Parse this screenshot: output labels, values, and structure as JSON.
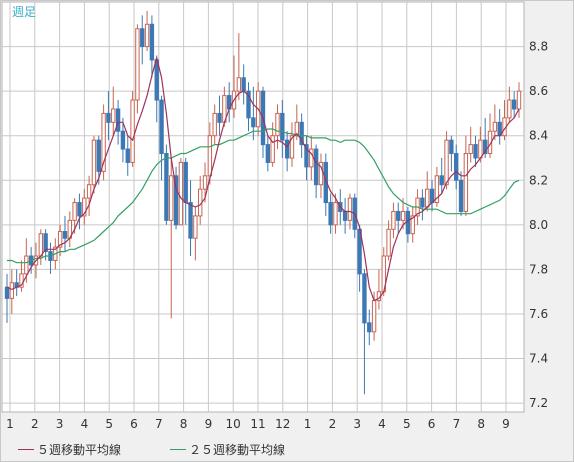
{
  "chart_data": {
    "type": "candlestick",
    "period_label": "週足",
    "x_tick_labels": [
      "1",
      "2",
      "3",
      "4",
      "5",
      "6",
      "7",
      "8",
      "9",
      "10",
      "11",
      "12",
      "1",
      "2",
      "3",
      "4",
      "5",
      "6",
      "7",
      "8",
      "9"
    ],
    "y_ticks": [
      7.2,
      7.4,
      7.6,
      7.8,
      8.0,
      8.2,
      8.4,
      8.6,
      8.8
    ],
    "ylim": [
      7.16,
      9.0
    ],
    "colors": {
      "up": "#c86450",
      "down": "#3c78b4",
      "ma5": "#a0325a",
      "ma25": "#32a064",
      "grid": "#c8c8c8",
      "plot_bg": "#ffffff",
      "frame_bg": "#f0f0f0"
    },
    "series": [
      {
        "name": "５週移動平均線",
        "color": "#a0325a"
      },
      {
        "name": "２５週移動平均線",
        "color": "#32a064"
      }
    ],
    "candles": [
      [
        7.72,
        7.67,
        7.78,
        7.56
      ],
      [
        7.67,
        7.74,
        7.8,
        7.6
      ],
      [
        7.74,
        7.72,
        7.8,
        7.68
      ],
      [
        7.72,
        7.78,
        7.84,
        7.7
      ],
      [
        7.78,
        7.86,
        7.94,
        7.74
      ],
      [
        7.86,
        7.82,
        7.9,
        7.78
      ],
      [
        7.82,
        7.86,
        7.92,
        7.76
      ],
      [
        7.86,
        7.96,
        7.98,
        7.82
      ],
      [
        7.96,
        7.88,
        7.98,
        7.84
      ],
      [
        7.88,
        7.84,
        7.92,
        7.78
      ],
      [
        7.84,
        7.9,
        7.94,
        7.8
      ],
      [
        7.9,
        7.97,
        8.0,
        7.86
      ],
      [
        7.97,
        7.94,
        8.04,
        7.88
      ],
      [
        7.94,
        8.02,
        8.06,
        7.9
      ],
      [
        8.02,
        8.1,
        8.12,
        7.96
      ],
      [
        8.1,
        8.04,
        8.14,
        7.98
      ],
      [
        8.04,
        8.12,
        8.16,
        8.0
      ],
      [
        8.12,
        8.18,
        8.22,
        8.04
      ],
      [
        8.18,
        8.38,
        8.4,
        8.14
      ],
      [
        8.38,
        8.24,
        8.4,
        8.18
      ],
      [
        8.24,
        8.5,
        8.54,
        8.2
      ],
      [
        8.5,
        8.46,
        8.6,
        8.38
      ],
      [
        8.46,
        8.52,
        8.62,
        8.4
      ],
      [
        8.52,
        8.42,
        8.56,
        8.36
      ],
      [
        8.42,
        8.34,
        8.48,
        8.28
      ],
      [
        8.34,
        8.28,
        8.4,
        8.22
      ],
      [
        8.28,
        8.56,
        8.6,
        8.26
      ],
      [
        8.56,
        8.88,
        8.9,
        8.5
      ],
      [
        8.88,
        8.8,
        8.94,
        8.72
      ],
      [
        8.8,
        8.9,
        8.96,
        8.78
      ],
      [
        8.9,
        8.74,
        8.94,
        8.66
      ],
      [
        8.74,
        8.56,
        8.76,
        8.46
      ],
      [
        8.56,
        8.32,
        8.58,
        8.2
      ],
      [
        8.32,
        8.02,
        8.36,
        8.0
      ],
      [
        8.02,
        8.22,
        8.3,
        7.58
      ],
      [
        8.22,
        8.0,
        8.26,
        7.98
      ],
      [
        8.0,
        8.28,
        8.3,
        8.0
      ],
      [
        8.28,
        8.1,
        8.3,
        8.0
      ],
      [
        8.1,
        7.94,
        8.2,
        7.86
      ],
      [
        7.94,
        8.04,
        8.08,
        7.84
      ],
      [
        8.04,
        8.16,
        8.22,
        8.0
      ],
      [
        8.16,
        8.22,
        8.28,
        8.1
      ],
      [
        8.22,
        8.4,
        8.46,
        8.18
      ],
      [
        8.4,
        8.5,
        8.54,
        8.36
      ],
      [
        8.5,
        8.46,
        8.58,
        8.4
      ],
      [
        8.46,
        8.58,
        8.62,
        8.44
      ],
      [
        8.58,
        8.52,
        8.64,
        8.46
      ],
      [
        8.52,
        8.6,
        8.76,
        8.48
      ],
      [
        8.6,
        8.66,
        8.86,
        8.56
      ],
      [
        8.66,
        8.6,
        8.72,
        8.54
      ],
      [
        8.6,
        8.48,
        8.64,
        8.42
      ],
      [
        8.48,
        8.44,
        8.62,
        8.38
      ],
      [
        8.44,
        8.6,
        8.64,
        8.4
      ],
      [
        8.6,
        8.36,
        8.62,
        8.3
      ],
      [
        8.36,
        8.28,
        8.4,
        8.24
      ],
      [
        8.28,
        8.4,
        8.46,
        8.26
      ],
      [
        8.4,
        8.5,
        8.54,
        8.34
      ],
      [
        8.5,
        8.38,
        8.56,
        8.3
      ],
      [
        8.38,
        8.3,
        8.42,
        8.24
      ],
      [
        8.3,
        8.4,
        8.46,
        8.26
      ],
      [
        8.4,
        8.46,
        8.54,
        8.38
      ],
      [
        8.46,
        8.36,
        8.5,
        8.3
      ],
      [
        8.36,
        8.26,
        8.4,
        8.2
      ],
      [
        8.26,
        8.34,
        8.4,
        8.2
      ],
      [
        8.34,
        8.18,
        8.36,
        8.12
      ],
      [
        8.18,
        8.28,
        8.32,
        8.12
      ],
      [
        8.28,
        8.1,
        8.32,
        8.04
      ],
      [
        8.1,
        8.0,
        8.14,
        7.96
      ],
      [
        8.0,
        8.1,
        8.14,
        7.96
      ],
      [
        8.1,
        8.06,
        8.16,
        8.0
      ],
      [
        8.06,
        8.02,
        8.12,
        7.96
      ],
      [
        8.02,
        8.12,
        8.14,
        7.98
      ],
      [
        8.12,
        7.98,
        8.14,
        7.94
      ],
      [
        7.98,
        7.78,
        8.0,
        7.7
      ],
      [
        7.78,
        7.56,
        7.8,
        7.24
      ],
      [
        7.56,
        7.52,
        7.62,
        7.46
      ],
      [
        7.52,
        7.66,
        7.7,
        7.48
      ],
      [
        7.66,
        7.7,
        7.8,
        7.62
      ],
      [
        7.7,
        7.86,
        7.9,
        7.68
      ],
      [
        7.86,
        7.98,
        8.02,
        7.84
      ],
      [
        7.98,
        8.06,
        8.1,
        7.94
      ],
      [
        8.06,
        8.02,
        8.1,
        7.96
      ],
      [
        8.02,
        8.06,
        8.12,
        7.98
      ],
      [
        8.06,
        7.96,
        8.08,
        7.92
      ],
      [
        7.96,
        8.04,
        8.08,
        7.92
      ],
      [
        8.04,
        8.12,
        8.16,
        8.0
      ],
      [
        8.12,
        8.08,
        8.16,
        8.02
      ],
      [
        8.08,
        8.16,
        8.24,
        8.06
      ],
      [
        8.16,
        8.1,
        8.2,
        8.06
      ],
      [
        8.1,
        8.22,
        8.26,
        8.08
      ],
      [
        8.22,
        8.18,
        8.3,
        8.14
      ],
      [
        8.18,
        8.38,
        8.42,
        8.16
      ],
      [
        8.38,
        8.32,
        8.4,
        8.24
      ],
      [
        8.32,
        8.2,
        8.36,
        8.16
      ],
      [
        8.2,
        8.06,
        8.24,
        8.04
      ],
      [
        8.06,
        8.32,
        8.4,
        8.04
      ],
      [
        8.32,
        8.36,
        8.44,
        8.28
      ],
      [
        8.36,
        8.3,
        8.4,
        8.26
      ],
      [
        8.3,
        8.38,
        8.44,
        8.28
      ],
      [
        8.38,
        8.32,
        8.48,
        8.3
      ],
      [
        8.32,
        8.42,
        8.5,
        8.3
      ],
      [
        8.42,
        8.46,
        8.54,
        8.38
      ],
      [
        8.46,
        8.4,
        8.52,
        8.36
      ],
      [
        8.4,
        8.48,
        8.56,
        8.38
      ],
      [
        8.48,
        8.56,
        8.62,
        8.46
      ],
      [
        8.56,
        8.52,
        8.6,
        8.48
      ],
      [
        8.52,
        8.6,
        8.64,
        8.48
      ]
    ],
    "ma5": [
      7.72,
      7.71,
      7.72,
      7.73,
      7.77,
      7.81,
      7.84,
      7.86,
      7.89,
      7.89,
      7.89,
      7.91,
      7.92,
      7.94,
      7.98,
      8.03,
      8.05,
      8.09,
      8.16,
      8.21,
      8.28,
      8.34,
      8.4,
      8.46,
      8.46,
      8.4,
      8.38,
      8.45,
      8.51,
      8.58,
      8.67,
      8.75,
      8.66,
      8.5,
      8.3,
      8.16,
      8.12,
      8.1,
      8.09,
      8.08,
      8.09,
      8.12,
      8.21,
      8.29,
      8.38,
      8.46,
      8.52,
      8.56,
      8.59,
      8.6,
      8.58,
      8.54,
      8.52,
      8.48,
      8.4,
      8.37,
      8.38,
      8.37,
      8.35,
      8.39,
      8.41,
      8.38,
      8.34,
      8.32,
      8.28,
      8.26,
      8.2,
      8.15,
      8.12,
      8.08,
      8.06,
      8.06,
      8.05,
      7.99,
      7.87,
      7.72,
      7.66,
      7.67,
      7.7,
      7.8,
      7.9,
      7.96,
      8.0,
      8.02,
      8.03,
      8.05,
      8.06,
      8.08,
      8.1,
      8.12,
      8.14,
      8.19,
      8.22,
      8.24,
      8.22,
      8.22,
      8.25,
      8.27,
      8.3,
      8.33,
      8.36,
      8.4,
      8.4,
      8.43,
      8.46,
      8.48,
      8.52
    ],
    "ma25": [
      7.84,
      7.84,
      7.83,
      7.83,
      7.83,
      7.84,
      7.85,
      7.85,
      7.86,
      7.86,
      7.87,
      7.88,
      7.88,
      7.89,
      7.89,
      7.9,
      7.91,
      7.92,
      7.93,
      7.95,
      7.97,
      7.99,
      8.01,
      8.04,
      8.06,
      8.08,
      8.1,
      8.13,
      8.16,
      8.2,
      8.24,
      8.27,
      8.29,
      8.3,
      8.3,
      8.31,
      8.32,
      8.32,
      8.33,
      8.34,
      8.35,
      8.35,
      8.35,
      8.36,
      8.36,
      8.37,
      8.38,
      8.38,
      8.39,
      8.4,
      8.41,
      8.42,
      8.42,
      8.42,
      8.43,
      8.43,
      8.42,
      8.42,
      8.41,
      8.41,
      8.4,
      8.4,
      8.4,
      8.39,
      8.39,
      8.39,
      8.39,
      8.38,
      8.38,
      8.37,
      8.38,
      8.38,
      8.38,
      8.37,
      8.35,
      8.32,
      8.29,
      8.25,
      8.21,
      8.17,
      8.14,
      8.12,
      8.1,
      8.09,
      8.08,
      8.08,
      8.07,
      8.07,
      8.07,
      8.07,
      8.06,
      8.05,
      8.05,
      8.05,
      8.05,
      8.05,
      8.05,
      8.06,
      8.07,
      8.08,
      8.09,
      8.1,
      8.11,
      8.13,
      8.16,
      8.19,
      8.2
    ]
  },
  "legend": {
    "ma5_label": "５週移動平均線",
    "ma25_label": "２５週移動平均線"
  }
}
